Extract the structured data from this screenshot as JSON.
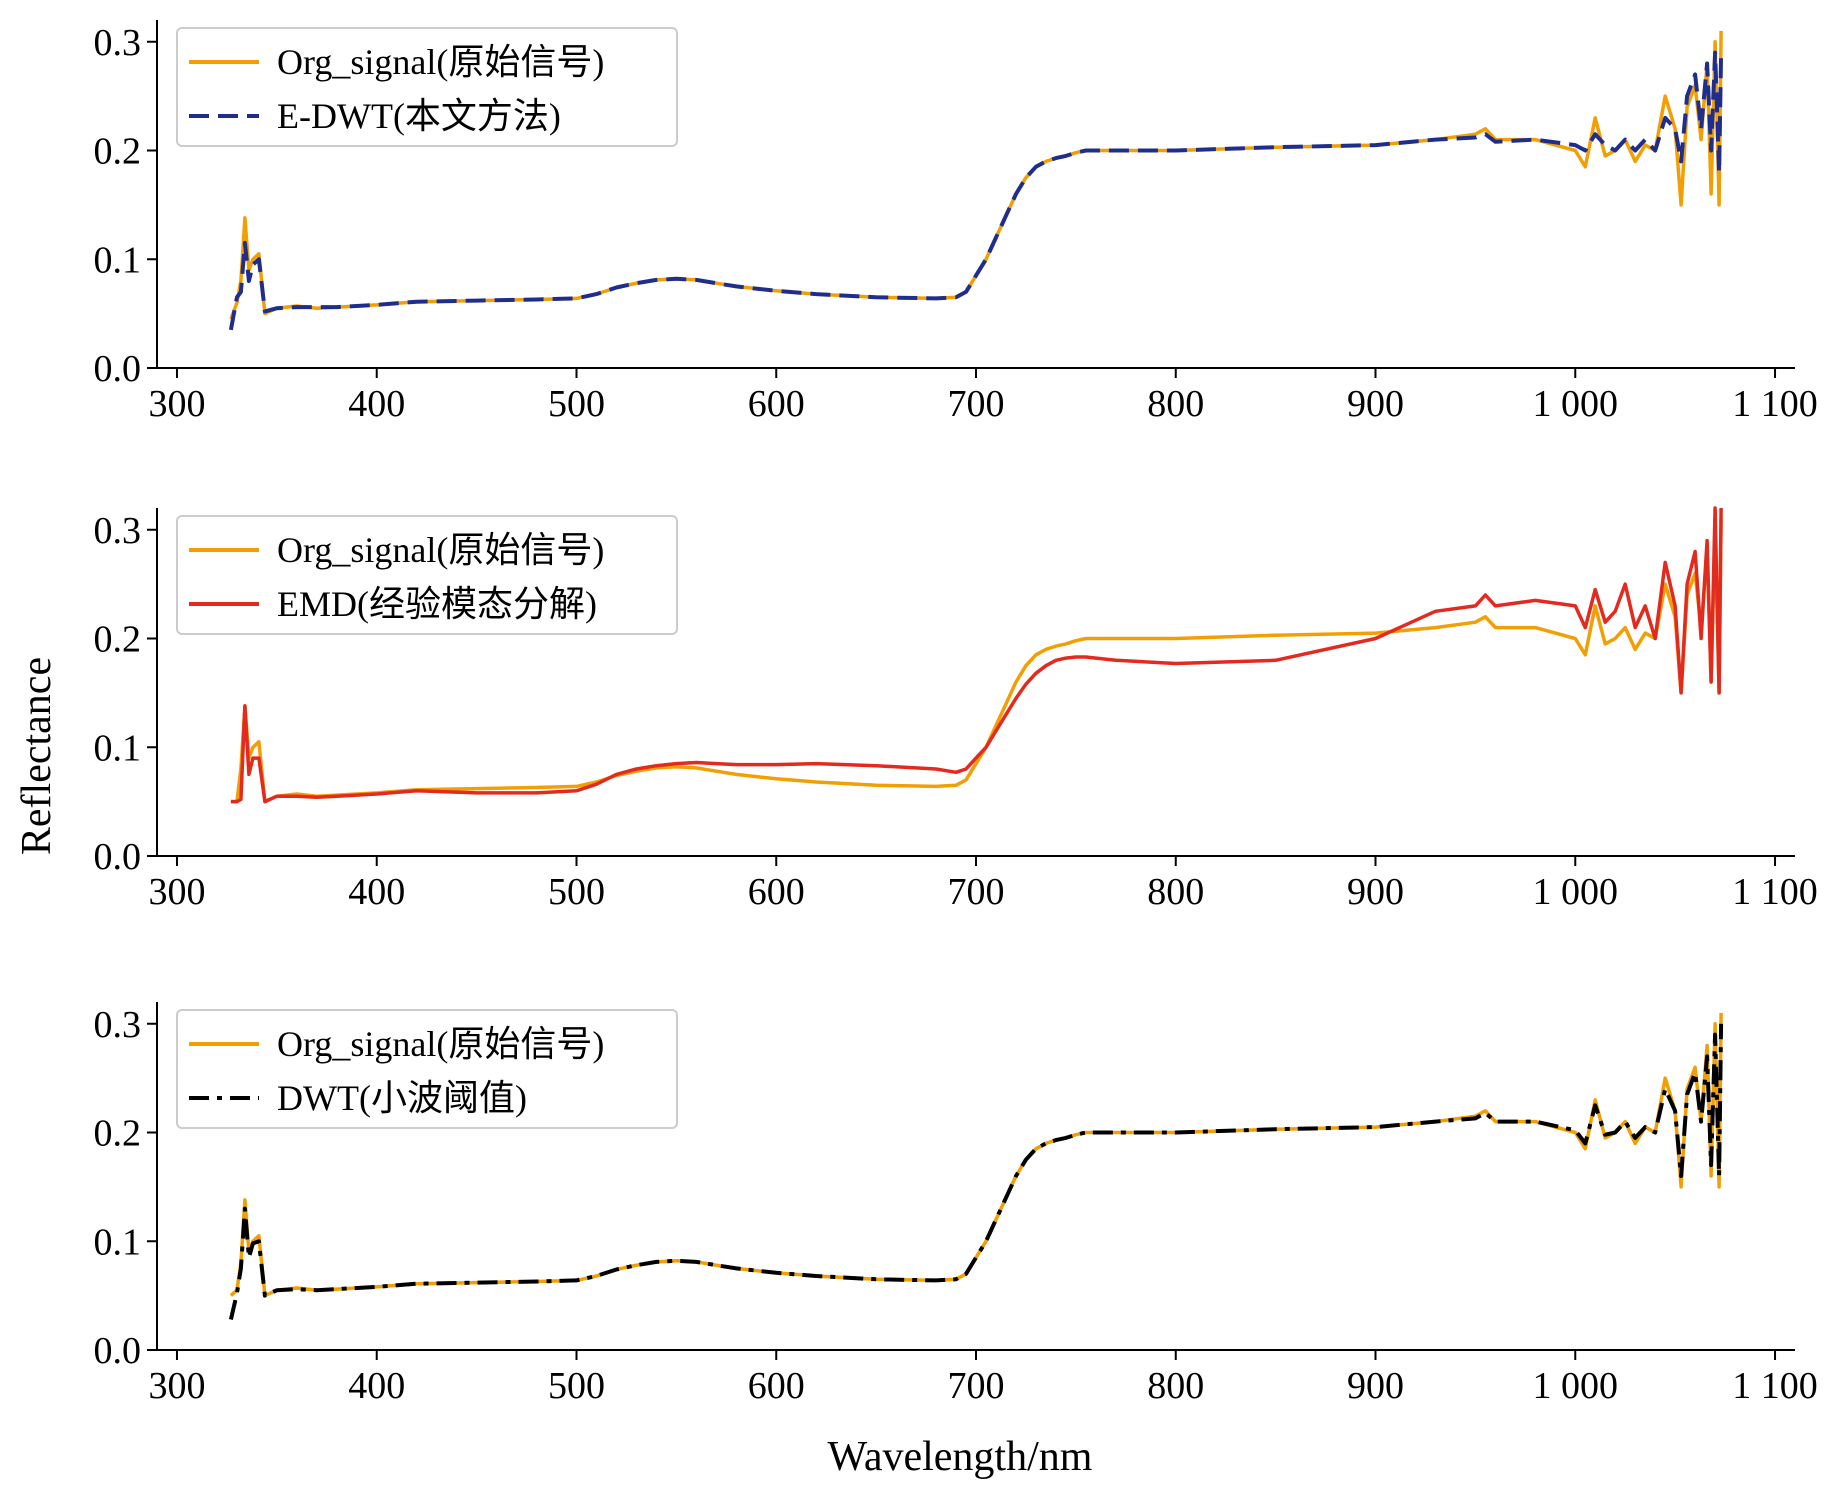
{
  "figure": {
    "ylabel": "Reflectance",
    "xlabel": "Wavelength/nm"
  },
  "colors": {
    "original": "#F29F05",
    "edwt": "#1F2E8C",
    "emd": "#E32A1E",
    "dwt": "#000000"
  },
  "chart_data": [
    {
      "type": "line",
      "xlim": [
        290,
        1110
      ],
      "ylim": [
        0.0,
        0.32
      ],
      "xticks": [
        300,
        400,
        500,
        600,
        700,
        800,
        900,
        1000,
        1100
      ],
      "xtick_labels": [
        "300",
        "400",
        "500",
        "600",
        "700",
        "800",
        "900",
        "1 000",
        "1 100"
      ],
      "yticks": [
        0.0,
        0.1,
        0.2,
        0.3
      ],
      "ytick_labels": [
        "0.0",
        "0.1",
        "0.2",
        "0.3"
      ],
      "legend_position": "upper-left",
      "grid": false,
      "series": [
        {
          "name": "Org_signal(原始信号)",
          "style": "solid",
          "color": "#F29F05",
          "x": [
            327,
            330,
            332,
            334,
            336,
            338,
            341,
            344,
            350,
            360,
            370,
            380,
            400,
            420,
            450,
            480,
            500,
            510,
            520,
            530,
            540,
            550,
            560,
            570,
            580,
            600,
            620,
            650,
            680,
            690,
            695,
            700,
            705,
            710,
            715,
            720,
            725,
            730,
            735,
            740,
            745,
            750,
            755,
            760,
            770,
            800,
            850,
            900,
            930,
            950,
            955,
            960,
            980,
            1000,
            1005,
            1010,
            1015,
            1020,
            1025,
            1030,
            1035,
            1040,
            1045,
            1050,
            1053,
            1056,
            1060,
            1063,
            1066,
            1068,
            1070,
            1072,
            1073
          ],
          "y": [
            0.045,
            0.06,
            0.08,
            0.138,
            0.09,
            0.1,
            0.105,
            0.05,
            0.055,
            0.057,
            0.055,
            0.056,
            0.058,
            0.061,
            0.062,
            0.063,
            0.064,
            0.068,
            0.074,
            0.078,
            0.081,
            0.082,
            0.081,
            0.078,
            0.075,
            0.071,
            0.068,
            0.065,
            0.064,
            0.065,
            0.07,
            0.085,
            0.1,
            0.12,
            0.14,
            0.16,
            0.175,
            0.185,
            0.19,
            0.193,
            0.195,
            0.198,
            0.2,
            0.2,
            0.2,
            0.2,
            0.203,
            0.205,
            0.21,
            0.215,
            0.22,
            0.21,
            0.21,
            0.2,
            0.185,
            0.23,
            0.195,
            0.2,
            0.21,
            0.19,
            0.205,
            0.2,
            0.25,
            0.22,
            0.15,
            0.24,
            0.26,
            0.21,
            0.28,
            0.16,
            0.3,
            0.15,
            0.31
          ]
        },
        {
          "name": "E-DWT(本文方法)",
          "style": "dashed",
          "color": "#1F2E8C",
          "x": [
            327,
            330,
            332,
            334,
            336,
            338,
            341,
            344,
            350,
            360,
            370,
            380,
            400,
            420,
            450,
            480,
            500,
            510,
            520,
            530,
            540,
            550,
            560,
            570,
            580,
            600,
            620,
            650,
            680,
            690,
            695,
            700,
            705,
            710,
            715,
            720,
            725,
            730,
            735,
            740,
            745,
            750,
            755,
            760,
            770,
            800,
            850,
            900,
            930,
            950,
            955,
            960,
            980,
            1000,
            1005,
            1010,
            1015,
            1020,
            1025,
            1030,
            1035,
            1040,
            1045,
            1050,
            1053,
            1056,
            1060,
            1063,
            1066,
            1068,
            1070,
            1072,
            1073
          ],
          "y": [
            0.035,
            0.065,
            0.07,
            0.115,
            0.08,
            0.095,
            0.1,
            0.052,
            0.055,
            0.056,
            0.056,
            0.056,
            0.058,
            0.061,
            0.062,
            0.063,
            0.064,
            0.068,
            0.074,
            0.078,
            0.081,
            0.082,
            0.081,
            0.078,
            0.075,
            0.071,
            0.068,
            0.065,
            0.064,
            0.065,
            0.07,
            0.085,
            0.1,
            0.12,
            0.14,
            0.16,
            0.175,
            0.185,
            0.19,
            0.193,
            0.195,
            0.198,
            0.2,
            0.2,
            0.2,
            0.2,
            0.203,
            0.205,
            0.21,
            0.212,
            0.215,
            0.208,
            0.21,
            0.205,
            0.2,
            0.215,
            0.205,
            0.2,
            0.21,
            0.2,
            0.21,
            0.2,
            0.23,
            0.22,
            0.19,
            0.25,
            0.27,
            0.22,
            0.28,
            0.2,
            0.29,
            0.18,
            0.29
          ]
        }
      ]
    },
    {
      "type": "line",
      "xlim": [
        290,
        1110
      ],
      "ylim": [
        0.0,
        0.32
      ],
      "xticks": [
        300,
        400,
        500,
        600,
        700,
        800,
        900,
        1000,
        1100
      ],
      "xtick_labels": [
        "300",
        "400",
        "500",
        "600",
        "700",
        "800",
        "900",
        "1 000",
        "1 100"
      ],
      "yticks": [
        0.0,
        0.1,
        0.2,
        0.3
      ],
      "ytick_labels": [
        "0.0",
        "0.1",
        "0.2",
        "0.3"
      ],
      "legend_position": "upper-left",
      "grid": false,
      "series": [
        {
          "name": "Org_signal(原始信号)",
          "style": "solid",
          "color": "#F29F05",
          "x": [
            327,
            330,
            332,
            334,
            336,
            338,
            341,
            344,
            350,
            360,
            370,
            380,
            400,
            420,
            450,
            480,
            500,
            510,
            520,
            530,
            540,
            550,
            560,
            570,
            580,
            600,
            620,
            650,
            680,
            690,
            695,
            700,
            705,
            710,
            715,
            720,
            725,
            730,
            735,
            740,
            745,
            750,
            755,
            760,
            770,
            800,
            850,
            900,
            930,
            950,
            955,
            960,
            980,
            1000,
            1005,
            1010,
            1015,
            1020,
            1025,
            1030,
            1035,
            1040,
            1045,
            1050,
            1053,
            1056,
            1060,
            1063,
            1066,
            1068,
            1070,
            1072,
            1073
          ],
          "y": [
            0.05,
            0.05,
            0.08,
            0.138,
            0.09,
            0.1,
            0.105,
            0.05,
            0.055,
            0.057,
            0.055,
            0.056,
            0.058,
            0.061,
            0.062,
            0.063,
            0.064,
            0.068,
            0.074,
            0.078,
            0.081,
            0.082,
            0.081,
            0.078,
            0.075,
            0.071,
            0.068,
            0.065,
            0.064,
            0.065,
            0.07,
            0.085,
            0.1,
            0.12,
            0.14,
            0.16,
            0.175,
            0.185,
            0.19,
            0.193,
            0.195,
            0.198,
            0.2,
            0.2,
            0.2,
            0.2,
            0.203,
            0.205,
            0.21,
            0.215,
            0.22,
            0.21,
            0.21,
            0.2,
            0.185,
            0.23,
            0.195,
            0.2,
            0.21,
            0.19,
            0.205,
            0.2,
            0.25,
            0.22,
            0.15,
            0.24,
            0.26,
            0.21,
            0.28,
            0.16,
            0.3,
            0.15,
            0.31
          ]
        },
        {
          "name": "EMD(经验模态分解)",
          "style": "solid",
          "color": "#E32A1E",
          "x": [
            327,
            330,
            332,
            334,
            336,
            338,
            341,
            344,
            350,
            360,
            370,
            380,
            400,
            420,
            450,
            480,
            500,
            510,
            520,
            530,
            540,
            550,
            560,
            570,
            580,
            600,
            620,
            650,
            680,
            690,
            695,
            700,
            705,
            710,
            715,
            720,
            725,
            730,
            735,
            740,
            745,
            750,
            755,
            760,
            770,
            800,
            850,
            900,
            930,
            950,
            955,
            960,
            980,
            1000,
            1005,
            1010,
            1015,
            1020,
            1025,
            1030,
            1035,
            1040,
            1045,
            1050,
            1053,
            1056,
            1060,
            1063,
            1066,
            1068,
            1070,
            1072,
            1073
          ],
          "y": [
            0.05,
            0.05,
            0.052,
            0.138,
            0.075,
            0.09,
            0.09,
            0.05,
            0.055,
            0.055,
            0.054,
            0.055,
            0.057,
            0.06,
            0.058,
            0.058,
            0.06,
            0.066,
            0.075,
            0.08,
            0.083,
            0.085,
            0.086,
            0.085,
            0.084,
            0.084,
            0.085,
            0.083,
            0.08,
            0.077,
            0.08,
            0.09,
            0.1,
            0.115,
            0.13,
            0.145,
            0.158,
            0.168,
            0.175,
            0.18,
            0.182,
            0.183,
            0.183,
            0.182,
            0.18,
            0.177,
            0.18,
            0.2,
            0.225,
            0.23,
            0.24,
            0.23,
            0.235,
            0.23,
            0.21,
            0.245,
            0.215,
            0.225,
            0.25,
            0.21,
            0.23,
            0.2,
            0.27,
            0.23,
            0.15,
            0.25,
            0.28,
            0.2,
            0.29,
            0.16,
            0.32,
            0.15,
            0.32
          ]
        }
      ]
    },
    {
      "type": "line",
      "xlim": [
        290,
        1110
      ],
      "ylim": [
        0.0,
        0.32
      ],
      "xticks": [
        300,
        400,
        500,
        600,
        700,
        800,
        900,
        1000,
        1100
      ],
      "xtick_labels": [
        "300",
        "400",
        "500",
        "600",
        "700",
        "800",
        "900",
        "1 000",
        "1 100"
      ],
      "yticks": [
        0.0,
        0.1,
        0.2,
        0.3
      ],
      "ytick_labels": [
        "0.0",
        "0.1",
        "0.2",
        "0.3"
      ],
      "legend_position": "upper-left",
      "grid": false,
      "series": [
        {
          "name": "Org_signal(原始信号)",
          "style": "solid",
          "color": "#F29F05",
          "x": [
            327,
            330,
            332,
            334,
            336,
            338,
            341,
            344,
            350,
            360,
            370,
            380,
            400,
            420,
            450,
            480,
            500,
            510,
            520,
            530,
            540,
            550,
            560,
            570,
            580,
            600,
            620,
            650,
            680,
            690,
            695,
            700,
            705,
            710,
            715,
            720,
            725,
            730,
            735,
            740,
            745,
            750,
            755,
            760,
            770,
            800,
            850,
            900,
            930,
            950,
            955,
            960,
            980,
            1000,
            1005,
            1010,
            1015,
            1020,
            1025,
            1030,
            1035,
            1040,
            1045,
            1050,
            1053,
            1056,
            1060,
            1063,
            1066,
            1068,
            1070,
            1072,
            1073
          ],
          "y": [
            0.05,
            0.055,
            0.08,
            0.138,
            0.09,
            0.1,
            0.105,
            0.05,
            0.055,
            0.057,
            0.055,
            0.056,
            0.058,
            0.061,
            0.062,
            0.063,
            0.064,
            0.068,
            0.074,
            0.078,
            0.081,
            0.082,
            0.081,
            0.078,
            0.075,
            0.071,
            0.068,
            0.065,
            0.064,
            0.065,
            0.07,
            0.085,
            0.1,
            0.12,
            0.14,
            0.16,
            0.175,
            0.185,
            0.19,
            0.193,
            0.195,
            0.198,
            0.2,
            0.2,
            0.2,
            0.2,
            0.203,
            0.205,
            0.21,
            0.215,
            0.22,
            0.21,
            0.21,
            0.2,
            0.185,
            0.23,
            0.195,
            0.2,
            0.21,
            0.19,
            0.205,
            0.2,
            0.25,
            0.22,
            0.15,
            0.24,
            0.26,
            0.21,
            0.28,
            0.16,
            0.3,
            0.15,
            0.31
          ]
        },
        {
          "name": "DWT(小波阈值)",
          "style": "dashdot",
          "color": "#000000",
          "x": [
            327,
            330,
            332,
            334,
            336,
            338,
            341,
            344,
            350,
            360,
            370,
            380,
            400,
            420,
            450,
            480,
            500,
            510,
            520,
            530,
            540,
            550,
            560,
            570,
            580,
            600,
            620,
            650,
            680,
            690,
            695,
            700,
            705,
            710,
            715,
            720,
            725,
            730,
            735,
            740,
            745,
            750,
            755,
            760,
            770,
            800,
            850,
            900,
            930,
            950,
            955,
            960,
            980,
            1000,
            1005,
            1010,
            1015,
            1020,
            1025,
            1030,
            1035,
            1040,
            1045,
            1050,
            1053,
            1056,
            1060,
            1063,
            1066,
            1068,
            1070,
            1072,
            1073
          ],
          "y": [
            0.028,
            0.052,
            0.075,
            0.13,
            0.085,
            0.098,
            0.1,
            0.05,
            0.055,
            0.056,
            0.055,
            0.056,
            0.058,
            0.061,
            0.062,
            0.063,
            0.064,
            0.068,
            0.074,
            0.078,
            0.081,
            0.082,
            0.081,
            0.078,
            0.075,
            0.071,
            0.068,
            0.065,
            0.064,
            0.065,
            0.07,
            0.085,
            0.1,
            0.12,
            0.14,
            0.16,
            0.175,
            0.185,
            0.19,
            0.193,
            0.195,
            0.198,
            0.2,
            0.2,
            0.2,
            0.2,
            0.203,
            0.205,
            0.21,
            0.213,
            0.218,
            0.21,
            0.21,
            0.202,
            0.19,
            0.225,
            0.198,
            0.2,
            0.21,
            0.195,
            0.205,
            0.2,
            0.24,
            0.22,
            0.16,
            0.235,
            0.255,
            0.21,
            0.27,
            0.17,
            0.29,
            0.16,
            0.3
          ]
        }
      ]
    }
  ]
}
